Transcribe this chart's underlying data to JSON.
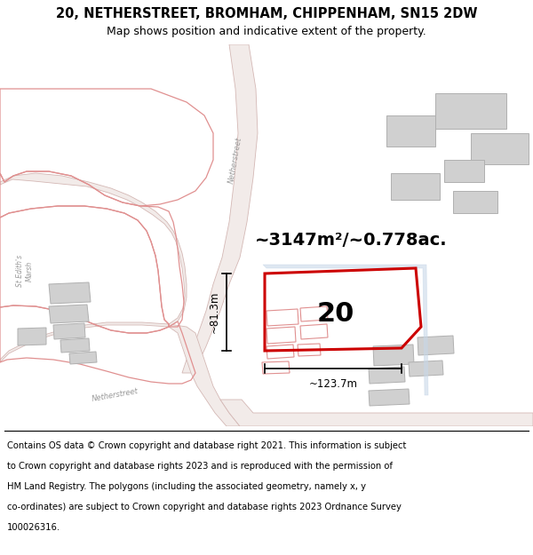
{
  "title_line1": "20, NETHERSTREET, BROMHAM, CHIPPENHAM, SN15 2DW",
  "title_line2": "Map shows position and indicative extent of the property.",
  "area_label": "~3147m²/~0.778ac.",
  "width_label": "~123.7m",
  "height_label": "~81.3m",
  "plot_number": "20",
  "bg_color": "#ffffff",
  "road_fill": "#f2ebe9",
  "road_edge": "#d4b8b5",
  "pink_edge": "#e09090",
  "grey_fill": "#d0d0d0",
  "grey_edge": "#b0b0b0",
  "red_color": "#cc0000",
  "blue_light": "#c8d8e8",
  "dim_color": "#000000",
  "text_color": "#000000",
  "street_color": "#999999",
  "footer_lines": [
    "Contains OS data © Crown copyright and database right 2021. This information is subject",
    "to Crown copyright and database rights 2023 and is reproduced with the permission of",
    "HM Land Registry. The polygons (including the associated geometry, namely x, y",
    "co-ordinates) are subject to Crown copyright and database rights 2023 Ordnance Survey",
    "100026316."
  ],
  "title_fontsize": 10.5,
  "subtitle_fontsize": 9,
  "area_fontsize": 14,
  "plot_fontsize": 22,
  "footer_fontsize": 7.2
}
